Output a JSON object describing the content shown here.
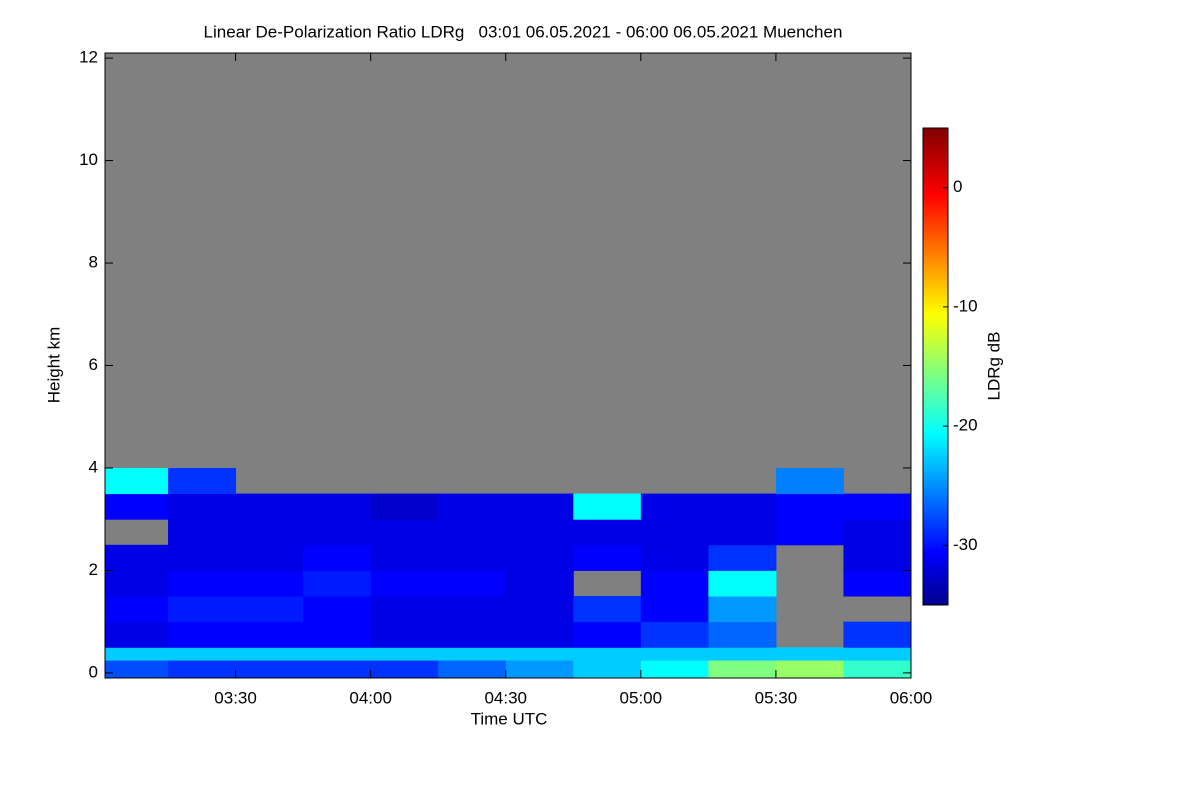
{
  "chart_data": {
    "type": "heatmap",
    "title": "Linear De-Polarization Ratio LDRg   03:01 06.05.2021 - 06:00 06.05.2021 Muenchen",
    "x_label": "Time UTC",
    "y_label": "Height km",
    "colorbar_label": "LDRg dB",
    "xlim": [
      181,
      360
    ],
    "xticks": [
      {
        "value": 210,
        "label": "03:30"
      },
      {
        "value": 240,
        "label": "04:00"
      },
      {
        "value": 270,
        "label": "04:30"
      },
      {
        "value": 300,
        "label": "05:00"
      },
      {
        "value": 330,
        "label": "05:30"
      },
      {
        "value": 360,
        "label": "06:00"
      }
    ],
    "ylim": [
      -0.1,
      12.1
    ],
    "yticks": [
      0,
      2,
      4,
      6,
      8,
      10,
      12
    ],
    "clim": [
      -35,
      5
    ],
    "cticks": [
      0,
      -10,
      -20,
      -30
    ],
    "colormap": "jet",
    "nodata_color": "#808080",
    "x_edges": [
      181,
      195,
      210,
      225,
      240,
      255,
      270,
      285,
      300,
      315,
      330,
      345,
      360
    ],
    "y_edges": [
      -0.1,
      0.25,
      0.5,
      1,
      1.5,
      2,
      2.5,
      3,
      3.5,
      4
    ],
    "z": [
      [
        -27,
        -28,
        -28,
        -28,
        -28,
        -26,
        -24,
        -22,
        -20,
        -15,
        -14,
        -18
      ],
      [
        -22,
        -22,
        -22,
        -22,
        -22,
        -22,
        -22,
        -22,
        -22,
        -22,
        -22,
        -22
      ],
      [
        -31,
        -30,
        -30,
        -30,
        -31,
        -31,
        -31,
        -30,
        -28,
        -26,
        null,
        -28
      ],
      [
        -30,
        -29,
        -29,
        -30,
        -31,
        -31,
        -31,
        -28,
        -30,
        -24,
        null,
        null
      ],
      [
        -31,
        -30,
        -30,
        -29,
        -30,
        -30,
        -31,
        null,
        -30,
        -20,
        null,
        -30
      ],
      [
        -31,
        -31,
        -31,
        -30,
        -31,
        -31,
        -31,
        -30,
        -31,
        -28,
        null,
        -31
      ],
      [
        null,
        -31,
        -31,
        -31,
        -31,
        -31,
        -31,
        -31,
        -31,
        -31,
        -30,
        -31
      ],
      [
        -30,
        -31,
        -31,
        -31,
        -32,
        -31,
        -31,
        -20,
        -31,
        -31,
        -30,
        -30
      ],
      [
        -20,
        -28,
        null,
        null,
        null,
        null,
        null,
        null,
        null,
        null,
        -25,
        null
      ]
    ]
  }
}
